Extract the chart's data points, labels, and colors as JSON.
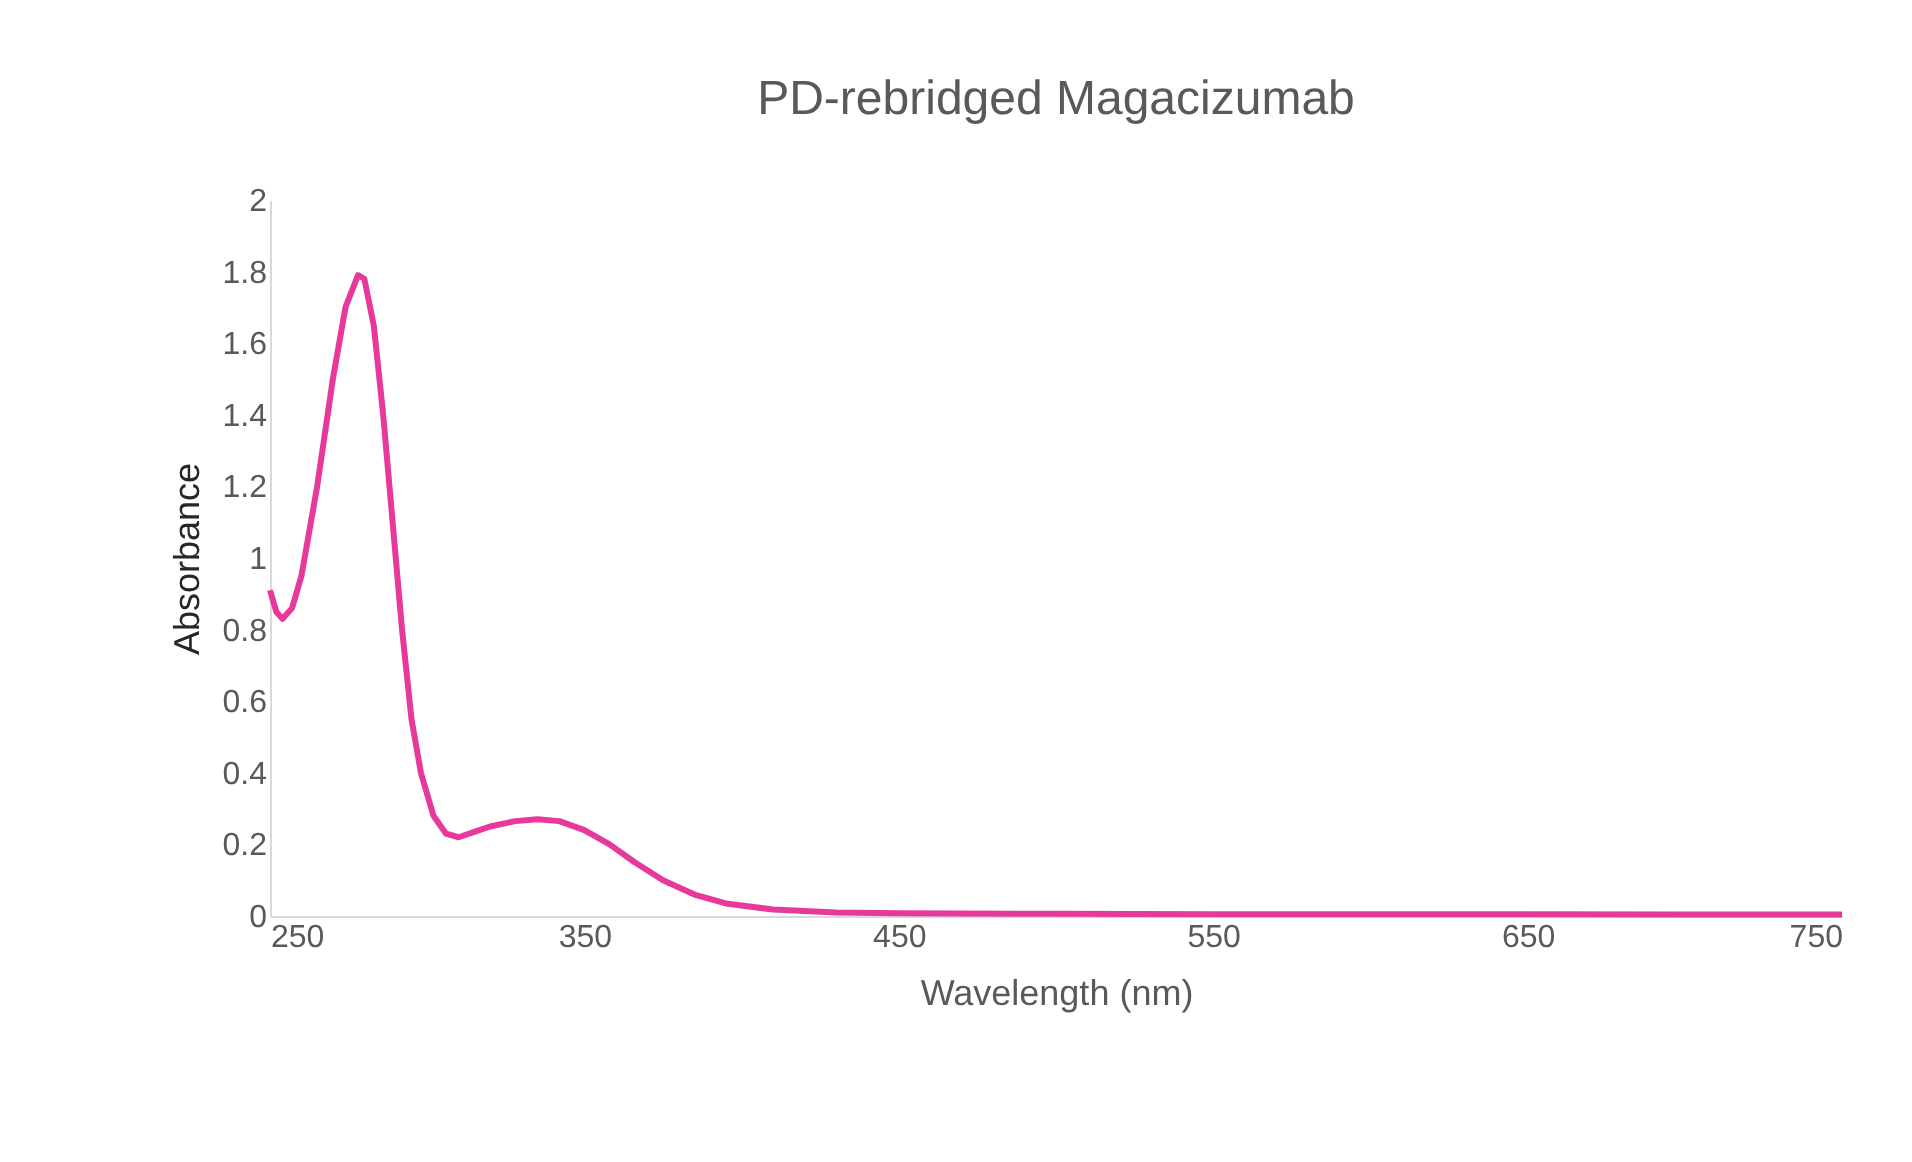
{
  "chart_data": {
    "type": "line",
    "title": "PD-rebridged Magacizumab",
    "xlabel": "Wavelength (nm)",
    "ylabel": "Absorbance",
    "x": [
      250,
      252,
      254,
      257,
      260,
      265,
      270,
      274,
      278,
      280,
      283,
      286,
      289,
      292,
      295,
      298,
      302,
      306,
      310,
      315,
      320,
      328,
      335,
      342,
      350,
      358,
      366,
      375,
      385,
      395,
      410,
      430,
      450,
      500,
      550,
      600,
      650,
      700,
      750
    ],
    "series": [
      {
        "color": "#e6399b",
        "values": [
          0.91,
          0.85,
          0.83,
          0.86,
          0.95,
          1.2,
          1.5,
          1.7,
          1.79,
          1.78,
          1.65,
          1.4,
          1.1,
          0.8,
          0.55,
          0.4,
          0.28,
          0.23,
          0.22,
          0.235,
          0.25,
          0.265,
          0.27,
          0.265,
          0.24,
          0.2,
          0.15,
          0.1,
          0.06,
          0.035,
          0.018,
          0.01,
          0.008,
          0.006,
          0.005,
          0.005,
          0.005,
          0.004,
          0.004
        ]
      }
    ],
    "xlim": [
      250,
      750
    ],
    "xticks": [
      250,
      350,
      450,
      550,
      650,
      750
    ],
    "ylim": [
      0,
      2
    ],
    "yticks": [
      0,
      0.2,
      0.4,
      0.6,
      0.8,
      1,
      1.2,
      1.4,
      1.6,
      1.8,
      2
    ],
    "grid": false,
    "marker": "none",
    "line_style": "solid"
  }
}
